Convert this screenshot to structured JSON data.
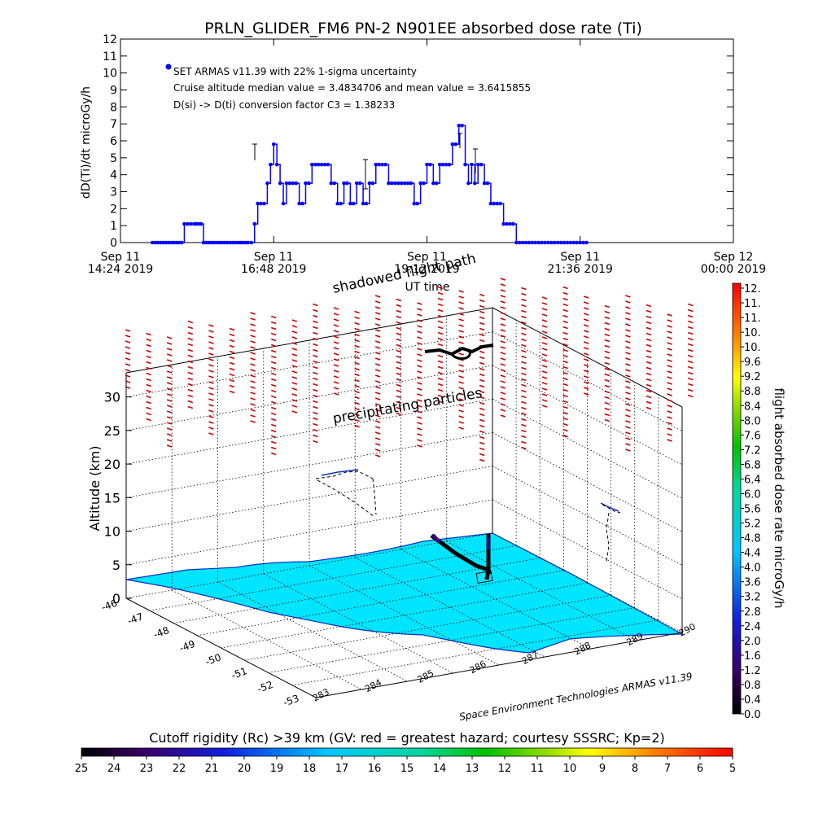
{
  "top_chart": {
    "title": "PRLN_GLIDER_FM6 PN-2 N901EE absorbed dose rate (Ti)",
    "ylabel": "dD(Ti)/dt microGy/h",
    "xlabel": "UT time",
    "legend_lines": [
      "SET ARMAS v11.39 with 22% 1-sigma uncertainty",
      "Cruise altitude median value = 3.4834706 and mean value = 3.6415855",
      "D(si) -> D(ti) conversion factor C3 = 1.38233"
    ],
    "x_ticks": [
      {
        "line1": "Sep 11",
        "line2": "14:24 2019"
      },
      {
        "line1": "Sep 11",
        "line2": "16:48 2019"
      },
      {
        "line1": "Sep 11",
        "line2": "19:12 2019"
      },
      {
        "line1": "Sep 11",
        "line2": "21:36 2019"
      },
      {
        "line1": "Sep 12",
        "line2": "00:00 2019"
      }
    ],
    "y_ticks": [
      "0",
      "1",
      "2",
      "3",
      "4",
      "5",
      "6",
      "7",
      "8",
      "9",
      "10",
      "11",
      "12"
    ]
  },
  "chart_data": [
    {
      "type": "scatter",
      "title": "PRLN_GLIDER_FM6 PN-2 N901EE absorbed dose rate (Ti)",
      "xlabel": "UT time",
      "ylabel": "dD(Ti)/dt microGy/h",
      "x_range_hours_ut": [
        14.4,
        24.0
      ],
      "ylim": [
        0,
        12
      ],
      "series": [
        {
          "name": "SET ARMAS v11.39 with 22% 1-sigma uncertainty",
          "color": "#0000ff",
          "x_hours_ut": [
            14.9,
            15.2,
            15.4,
            15.45,
            15.55,
            15.7,
            15.9,
            16.2,
            16.4,
            16.5,
            16.55,
            16.6,
            16.7,
            16.75,
            16.8,
            16.85,
            16.9,
            16.95,
            17.0,
            17.1,
            17.2,
            17.3,
            17.4,
            17.5,
            17.6,
            17.7,
            17.8,
            17.9,
            18.0,
            18.1,
            18.2,
            18.3,
            18.4,
            18.5,
            18.6,
            18.7,
            18.8,
            18.9,
            19.0,
            19.1,
            19.2,
            19.3,
            19.4,
            19.5,
            19.6,
            19.7,
            19.8,
            19.85,
            19.9,
            19.95,
            20.0,
            20.1,
            20.2,
            20.3,
            20.4,
            20.5,
            20.6,
            20.7,
            20.8,
            20.9,
            21.0,
            21.1,
            21.2,
            21.3,
            21.4,
            21.5,
            21.6,
            21.7
          ],
          "y": [
            0,
            0,
            1.1,
            1.1,
            1.1,
            0,
            0,
            0,
            0,
            1.1,
            2.3,
            2.3,
            3.5,
            4.6,
            5.8,
            4.6,
            3.5,
            2.3,
            3.5,
            3.5,
            2.3,
            3.5,
            4.6,
            4.6,
            4.6,
            3.5,
            2.3,
            3.5,
            2.3,
            3.5,
            2.3,
            3.5,
            4.6,
            4.6,
            3.5,
            3.5,
            3.5,
            3.5,
            2.3,
            3.5,
            4.6,
            3.5,
            4.6,
            4.6,
            5.8,
            6.9,
            4.6,
            3.5,
            4.6,
            3.5,
            4.6,
            3.5,
            2.3,
            2.3,
            1.1,
            1.1,
            0,
            0,
            0,
            0,
            0,
            0,
            0,
            0,
            0,
            0,
            0,
            0
          ]
        }
      ]
    },
    {
      "type": "scatter",
      "title": "3D flight path with precipitating particles",
      "zlabel": "Altitude (km)",
      "zlim": [
        0,
        35
      ],
      "z_ticks": [
        "0",
        "5",
        "10",
        "15",
        "20",
        "25",
        "30"
      ],
      "lat_ticks": [
        "-46",
        "-47",
        "-48",
        "-49",
        "-50",
        "-51",
        "-52",
        "-53"
      ],
      "lon_ticks": [
        "283",
        "284",
        "285",
        "286",
        "287",
        "288",
        "289",
        "290"
      ],
      "annotations": [
        "shadowed flight path",
        "precipitating particles"
      ],
      "credit": "Space Environment Technologies ARMAS v11.39"
    }
  ],
  "dose_colorbar": {
    "label": "flight absorbed dose rate microGy/h",
    "ticks": [
      "12.",
      "11.",
      "11.",
      "10.",
      "10.",
      "9.6",
      "9.2",
      "8.8",
      "8.4",
      "8.0",
      "7.6",
      "7.2",
      "6.8",
      "6.4",
      "6.0",
      "5.6",
      "5.2",
      "4.8",
      "4.4",
      "4.0",
      "3.6",
      "3.2",
      "2.8",
      "2.4",
      "2.0",
      "1.6",
      "1.2",
      "0.8",
      "0.4",
      "0.0"
    ]
  },
  "rigidity_colorbar": {
    "label": "Cutoff rigidity (Rc) >39 km (GV: red = greatest hazard; courtesy SSSRC; Kp=2)",
    "ticks": [
      "25",
      "24",
      "23",
      "22",
      "21",
      "20",
      "19",
      "18",
      "17",
      "16",
      "15",
      "14",
      "13",
      "12",
      "11",
      "10",
      "9",
      "8",
      "7",
      "6",
      "5"
    ]
  },
  "colors": {
    "points": "#0000ff",
    "particles": "#cc0000",
    "terrain": "#00e5ff",
    "coast": "#1030c0"
  }
}
